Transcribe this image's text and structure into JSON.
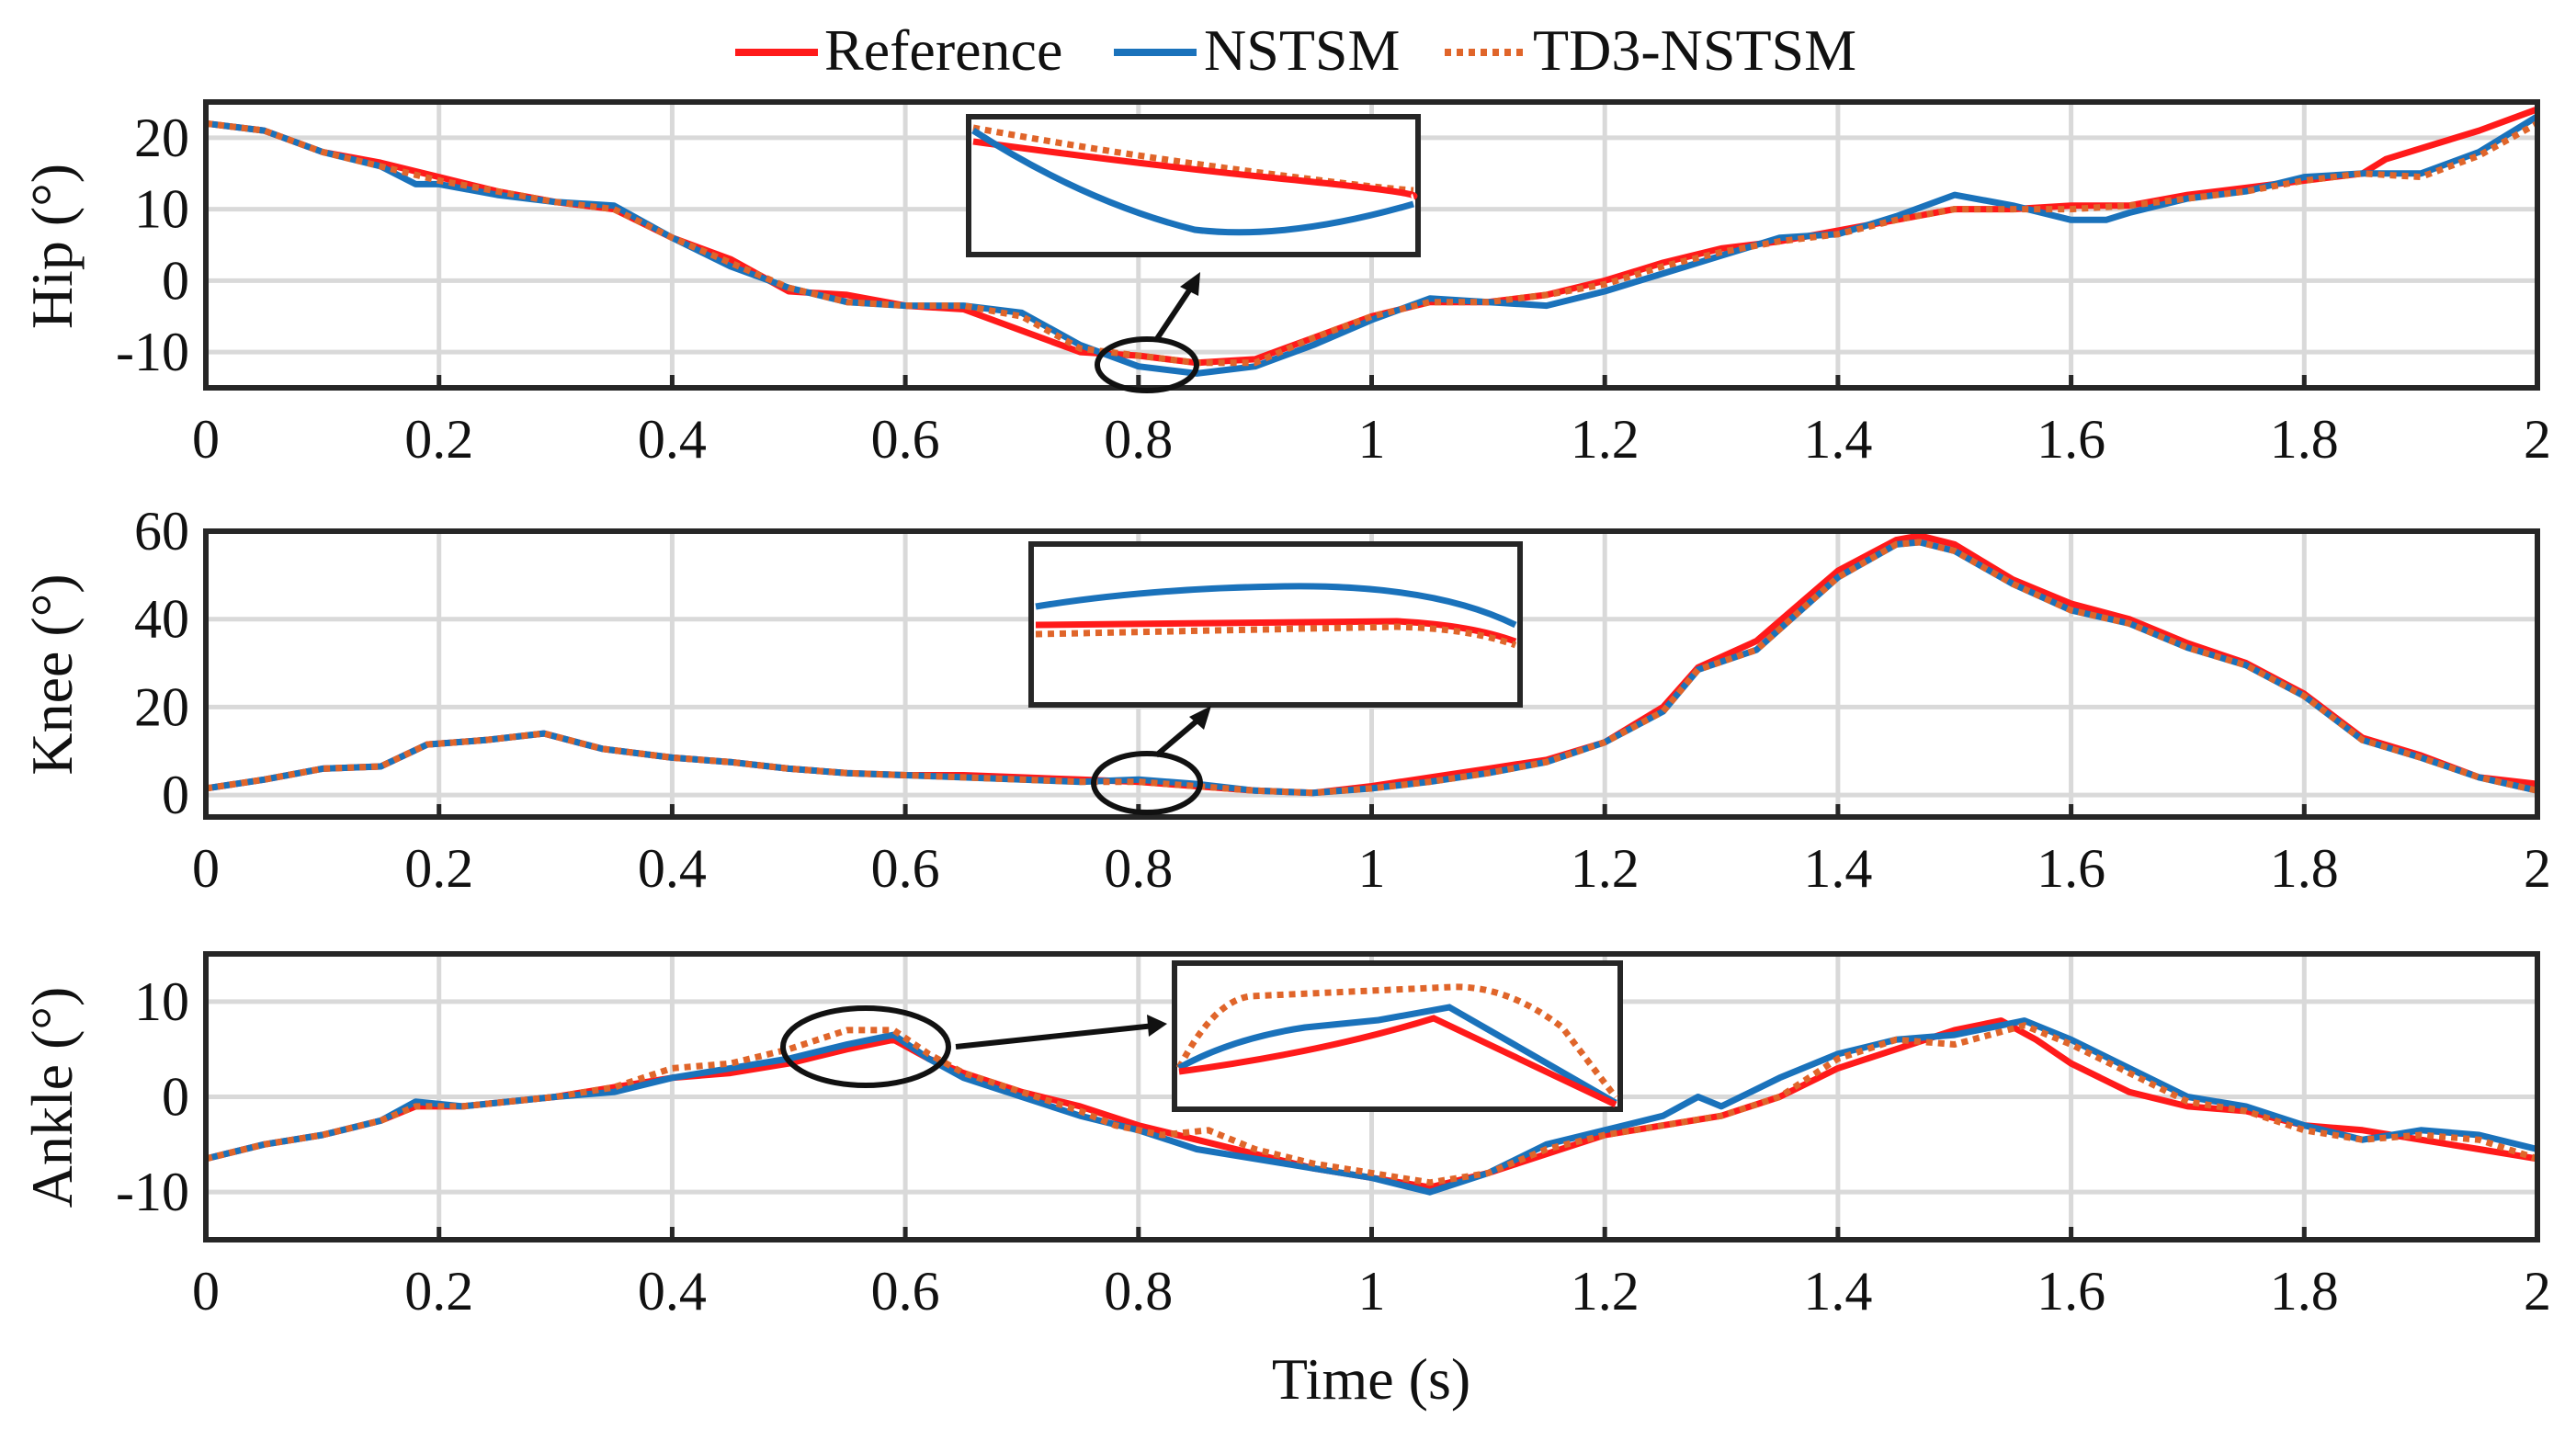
{
  "legend": {
    "entries": [
      {
        "label": "Reference",
        "color": "#ff1a1a",
        "style": "solid"
      },
      {
        "label": "NSTSM",
        "color": "#1a72bb",
        "style": "solid"
      },
      {
        "label": "TD3-NSTSM",
        "color": "#e0652a",
        "style": "dotted"
      }
    ]
  },
  "xlabel": "Time (s)",
  "colors": {
    "reference": "#ff1a1a",
    "nstsm": "#1a72bb",
    "td3": "#e0652a",
    "axis": "#262626",
    "grid": "#d9d9d9"
  },
  "chart_data": [
    {
      "type": "line",
      "id": "hip",
      "ylabel": "Hip (°)",
      "xlim": [
        0,
        2
      ],
      "ylim": [
        -15,
        25
      ],
      "xticks": [
        0,
        0.2,
        0.4,
        0.6,
        0.8,
        1,
        1.2,
        1.4,
        1.6,
        1.8,
        2
      ],
      "xtick_labels": [
        "0",
        "0.2",
        "0.4",
        "0.6",
        "0.8",
        "1",
        "1.2",
        "1.4",
        "1.6",
        "1.8",
        "2"
      ],
      "yticks": [
        -10,
        0,
        10,
        20
      ],
      "ytick_labels": [
        "-10",
        "0",
        "10",
        "20"
      ],
      "series": [
        {
          "name": "Reference",
          "x": [
            0,
            0.05,
            0.1,
            0.15,
            0.2,
            0.25,
            0.3,
            0.35,
            0.4,
            0.45,
            0.5,
            0.55,
            0.6,
            0.65,
            0.7,
            0.75,
            0.8,
            0.85,
            0.9,
            0.95,
            1.0,
            1.05,
            1.1,
            1.15,
            1.2,
            1.25,
            1.3,
            1.35,
            1.4,
            1.45,
            1.5,
            1.55,
            1.6,
            1.65,
            1.7,
            1.75,
            1.8,
            1.85,
            1.87,
            1.9,
            1.95,
            2.0
          ],
          "y": [
            22,
            21,
            18,
            16.5,
            14.5,
            12.5,
            11,
            10,
            6,
            3,
            -1.5,
            -2,
            -3.5,
            -4,
            -7,
            -10,
            -10.5,
            -11.5,
            -11,
            -8,
            -5,
            -3,
            -3,
            -2,
            0,
            2.5,
            4.5,
            5.5,
            7,
            8.5,
            10,
            10,
            10.5,
            10.5,
            12,
            13,
            14,
            15,
            17,
            18.5,
            21,
            24
          ]
        },
        {
          "name": "NSTSM",
          "x": [
            0,
            0.05,
            0.1,
            0.15,
            0.18,
            0.2,
            0.25,
            0.3,
            0.35,
            0.4,
            0.45,
            0.5,
            0.55,
            0.6,
            0.65,
            0.7,
            0.75,
            0.8,
            0.85,
            0.9,
            0.95,
            1.0,
            1.05,
            1.1,
            1.15,
            1.2,
            1.25,
            1.3,
            1.35,
            1.4,
            1.45,
            1.5,
            1.55,
            1.6,
            1.63,
            1.65,
            1.7,
            1.75,
            1.8,
            1.85,
            1.9,
            1.95,
            2.0
          ],
          "y": [
            22,
            21,
            18,
            16,
            13.5,
            13.5,
            12,
            11,
            10.5,
            6,
            2,
            -1,
            -3,
            -3.5,
            -3.5,
            -4.5,
            -9,
            -12,
            -13,
            -12,
            -9,
            -5.5,
            -2.5,
            -3,
            -3.5,
            -1.5,
            1,
            3.5,
            6,
            6.5,
            9,
            12,
            10.5,
            8.5,
            8.5,
            9.5,
            11.5,
            12.5,
            14.5,
            15,
            15,
            18,
            23
          ]
        },
        {
          "name": "TD3-NSTSM",
          "x": [
            0,
            0.05,
            0.1,
            0.15,
            0.2,
            0.25,
            0.3,
            0.35,
            0.4,
            0.45,
            0.5,
            0.55,
            0.6,
            0.65,
            0.7,
            0.75,
            0.8,
            0.85,
            0.9,
            0.95,
            1.0,
            1.05,
            1.1,
            1.15,
            1.2,
            1.25,
            1.3,
            1.35,
            1.4,
            1.45,
            1.5,
            1.55,
            1.6,
            1.65,
            1.7,
            1.75,
            1.8,
            1.85,
            1.9,
            1.95,
            2.0
          ],
          "y": [
            22,
            21,
            18,
            16,
            14,
            12.5,
            11,
            10,
            6,
            2.5,
            -1,
            -3,
            -3.5,
            -3.5,
            -5,
            -9.5,
            -10.5,
            -11.5,
            -11.5,
            -8,
            -5,
            -3,
            -3,
            -2,
            -0.5,
            2,
            4,
            5.5,
            6.5,
            8.5,
            10,
            10,
            10,
            10.5,
            11.5,
            12.5,
            14,
            15,
            14.5,
            17.5,
            22
          ]
        }
      ],
      "inset": {
        "label": "zoomed segment near 0.8 s"
      }
    },
    {
      "type": "line",
      "id": "knee",
      "ylabel": "Knee (°)",
      "xlim": [
        0,
        2
      ],
      "ylim": [
        -5,
        60
      ],
      "xticks": [
        0,
        0.2,
        0.4,
        0.6,
        0.8,
        1,
        1.2,
        1.4,
        1.6,
        1.8,
        2
      ],
      "xtick_labels": [
        "0",
        "0.2",
        "0.4",
        "0.6",
        "0.8",
        "1",
        "1.2",
        "1.4",
        "1.6",
        "1.8",
        "2"
      ],
      "yticks": [
        0,
        20,
        40,
        60
      ],
      "ytick_labels": [
        "0",
        "20",
        "40",
        "60"
      ],
      "series": [
        {
          "name": "Reference",
          "x": [
            0,
            0.05,
            0.1,
            0.15,
            0.19,
            0.24,
            0.29,
            0.34,
            0.4,
            0.45,
            0.5,
            0.55,
            0.6,
            0.65,
            0.7,
            0.75,
            0.8,
            0.85,
            0.9,
            0.95,
            1.0,
            1.05,
            1.1,
            1.15,
            1.2,
            1.25,
            1.28,
            1.33,
            1.4,
            1.45,
            1.47,
            1.5,
            1.55,
            1.6,
            1.65,
            1.7,
            1.75,
            1.8,
            1.85,
            1.9,
            1.95,
            2.0
          ],
          "y": [
            1.5,
            3.5,
            6,
            6.5,
            11.5,
            12.5,
            14,
            10.5,
            8.5,
            7.5,
            6,
            5,
            4.5,
            4.5,
            4,
            3.5,
            3,
            2,
            1,
            0.5,
            2,
            4,
            6,
            8,
            12,
            20,
            29,
            35,
            51,
            58,
            59,
            57,
            49,
            43.5,
            40,
            34.5,
            30,
            23,
            13,
            9,
            4,
            2.5
          ]
        },
        {
          "name": "NSTSM",
          "x": [
            0,
            0.05,
            0.1,
            0.15,
            0.19,
            0.24,
            0.29,
            0.34,
            0.4,
            0.45,
            0.5,
            0.55,
            0.6,
            0.65,
            0.7,
            0.75,
            0.8,
            0.85,
            0.9,
            0.95,
            1.0,
            1.05,
            1.1,
            1.15,
            1.2,
            1.25,
            1.28,
            1.33,
            1.4,
            1.45,
            1.47,
            1.5,
            1.55,
            1.6,
            1.65,
            1.7,
            1.75,
            1.8,
            1.85,
            1.9,
            1.95,
            2.0
          ],
          "y": [
            1.5,
            3.5,
            6,
            6.5,
            11.5,
            12.5,
            14,
            10.5,
            8.5,
            7.5,
            6,
            5,
            4.5,
            4,
            3.5,
            3,
            3.5,
            2.5,
            1,
            0.5,
            1.5,
            3,
            5,
            7.5,
            12,
            19,
            28.5,
            33,
            49.5,
            57,
            57.5,
            55.5,
            48,
            42,
            39,
            33.5,
            29.5,
            22.5,
            12.5,
            8.5,
            4,
            1
          ]
        },
        {
          "name": "TD3-NSTSM",
          "x": [
            0,
            0.05,
            0.1,
            0.15,
            0.19,
            0.24,
            0.29,
            0.34,
            0.4,
            0.45,
            0.5,
            0.55,
            0.6,
            0.65,
            0.7,
            0.75,
            0.8,
            0.85,
            0.9,
            0.95,
            1.0,
            1.05,
            1.1,
            1.15,
            1.2,
            1.25,
            1.28,
            1.33,
            1.4,
            1.45,
            1.47,
            1.5,
            1.55,
            1.6,
            1.65,
            1.7,
            1.75,
            1.8,
            1.85,
            1.9,
            1.95,
            2.0
          ],
          "y": [
            1.5,
            3.5,
            6,
            6.5,
            11.5,
            12.5,
            14,
            10.5,
            8.5,
            7.5,
            6,
            5,
            4.5,
            4,
            3.5,
            3,
            3,
            2,
            1,
            0.5,
            1.5,
            3,
            5,
            7.5,
            12,
            19,
            28.5,
            33,
            49.5,
            57,
            57.5,
            55.5,
            48,
            42,
            39,
            33.5,
            29.5,
            22.5,
            12.5,
            8.5,
            4,
            1
          ]
        }
      ],
      "inset": {
        "label": "zoomed segment near 0.8 s"
      }
    },
    {
      "type": "line",
      "id": "ankle",
      "ylabel": "Ankle (°)",
      "xlim": [
        0,
        2
      ],
      "ylim": [
        -15,
        15
      ],
      "xticks": [
        0,
        0.2,
        0.4,
        0.6,
        0.8,
        1,
        1.2,
        1.4,
        1.6,
        1.8,
        2
      ],
      "xtick_labels": [
        "0",
        "0.2",
        "0.4",
        "0.6",
        "0.8",
        "1",
        "1.2",
        "1.4",
        "1.6",
        "1.8",
        "2"
      ],
      "yticks": [
        -10,
        0,
        10
      ],
      "ytick_labels": [
        "-10",
        "0",
        "10"
      ],
      "series": [
        {
          "name": "Reference",
          "x": [
            0,
            0.05,
            0.1,
            0.15,
            0.18,
            0.22,
            0.3,
            0.35,
            0.4,
            0.45,
            0.5,
            0.55,
            0.59,
            0.62,
            0.65,
            0.7,
            0.75,
            0.8,
            0.85,
            0.9,
            0.95,
            1.0,
            1.05,
            1.1,
            1.15,
            1.2,
            1.25,
            1.3,
            1.35,
            1.4,
            1.45,
            1.5,
            1.54,
            1.57,
            1.6,
            1.65,
            1.7,
            1.75,
            1.8,
            1.85,
            1.9,
            1.95,
            2.0
          ],
          "y": [
            -6.5,
            -5,
            -4,
            -2.5,
            -1,
            -1,
            0,
            1,
            2,
            2.5,
            3.5,
            5,
            6,
            4,
            2.5,
            0.5,
            -1,
            -3,
            -4.5,
            -6,
            -7.5,
            -8.5,
            -9.5,
            -8,
            -6,
            -4,
            -3,
            -2,
            0,
            3,
            5,
            7,
            8,
            6,
            3.5,
            0.5,
            -1,
            -1.5,
            -3,
            -3.5,
            -4.5,
            -5.5,
            -6.5
          ]
        },
        {
          "name": "NSTSM",
          "x": [
            0,
            0.05,
            0.1,
            0.15,
            0.18,
            0.22,
            0.3,
            0.35,
            0.4,
            0.45,
            0.5,
            0.55,
            0.59,
            0.62,
            0.65,
            0.7,
            0.75,
            0.8,
            0.85,
            0.9,
            0.95,
            1.0,
            1.05,
            1.1,
            1.15,
            1.2,
            1.25,
            1.28,
            1.3,
            1.35,
            1.4,
            1.45,
            1.5,
            1.56,
            1.6,
            1.65,
            1.7,
            1.75,
            1.8,
            1.85,
            1.9,
            1.95,
            2.0
          ],
          "y": [
            -6.5,
            -5,
            -4,
            -2.5,
            -0.5,
            -1,
            0,
            0.5,
            2,
            3,
            4,
            5.5,
            6.5,
            4,
            2,
            0,
            -2,
            -3.5,
            -5.5,
            -6.5,
            -7.5,
            -8.5,
            -10,
            -8,
            -5,
            -3.5,
            -2,
            0,
            -1,
            2,
            4.5,
            6,
            6.5,
            8,
            6,
            3,
            0,
            -1,
            -3,
            -4.5,
            -3.5,
            -4,
            -5.5
          ]
        },
        {
          "name": "TD3-NSTSM",
          "x": [
            0,
            0.05,
            0.1,
            0.15,
            0.18,
            0.22,
            0.3,
            0.35,
            0.4,
            0.45,
            0.5,
            0.55,
            0.59,
            0.62,
            0.65,
            0.7,
            0.75,
            0.78,
            0.82,
            0.86,
            0.9,
            0.95,
            1.0,
            1.05,
            1.1,
            1.15,
            1.2,
            1.25,
            1.3,
            1.35,
            1.4,
            1.45,
            1.5,
            1.56,
            1.6,
            1.65,
            1.7,
            1.75,
            1.8,
            1.85,
            1.9,
            1.95,
            2.0
          ],
          "y": [
            -6.5,
            -5,
            -4,
            -2.5,
            -1,
            -1,
            0,
            1,
            3,
            3.5,
            5,
            7,
            7,
            4.5,
            2.5,
            0.5,
            -1.5,
            -3,
            -4,
            -3.5,
            -5.5,
            -7,
            -8,
            -9,
            -8,
            -5.5,
            -4,
            -3,
            -2,
            0,
            4,
            6,
            5.5,
            7.5,
            5.5,
            2.5,
            -0.5,
            -1.5,
            -3.5,
            -4.5,
            -4,
            -4.5,
            -6.5
          ]
        }
      ],
      "inset": {
        "label": "zoomed segment near 0.57 s"
      }
    }
  ]
}
